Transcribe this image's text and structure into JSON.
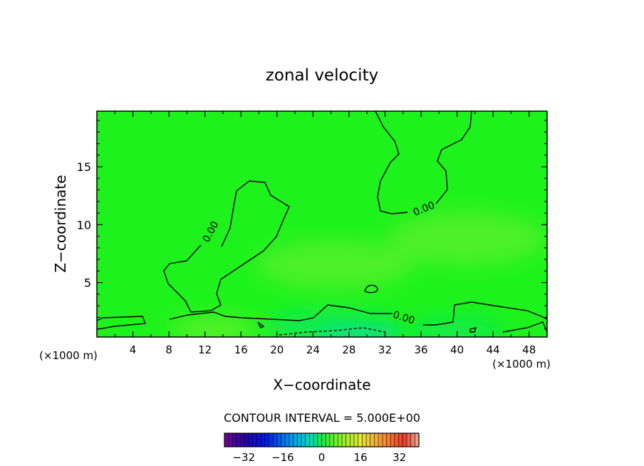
{
  "chart_data": {
    "type": "heatmap",
    "title": "zonal velocity",
    "xlabel": "X−coordinate",
    "ylabel": "Z−coordinate",
    "x_unit_left": "(×1000 m)",
    "x_unit_right": "(×1000 m)",
    "xlim": [
      0,
      50
    ],
    "ylim": [
      0.3,
      19.8
    ],
    "x_ticks": [
      "4",
      "8",
      "12",
      "16",
      "20",
      "24",
      "28",
      "32",
      "36",
      "40",
      "44",
      "48"
    ],
    "y_ticks": [
      "5",
      "10",
      "15"
    ],
    "contour_interval_text": "CONTOUR INTERVAL = 5.000E+00",
    "contour_interval": 5.0,
    "colorbar": {
      "range": [
        -40,
        40
      ],
      "ticks": [
        "−32",
        "−16",
        "0",
        "16",
        "32"
      ],
      "tick_values": [
        -32,
        -16,
        0,
        16,
        32
      ]
    },
    "contour_labels": [
      {
        "text": "0.00",
        "x": 12.6,
        "z": 9.4,
        "angle": -62
      },
      {
        "text": "0.00",
        "x": 36.3,
        "z": 11.4,
        "angle": -22
      },
      {
        "text": "0.00",
        "x": 34.1,
        "z": 2.0,
        "angle": 18
      }
    ],
    "field_colors": {
      "base": "#1ef21c",
      "positive_patch": "#4ef02a",
      "weak_positive": "#64f02a",
      "negative_patch": "#10e85c",
      "negative_core": "#0ce27c"
    }
  }
}
